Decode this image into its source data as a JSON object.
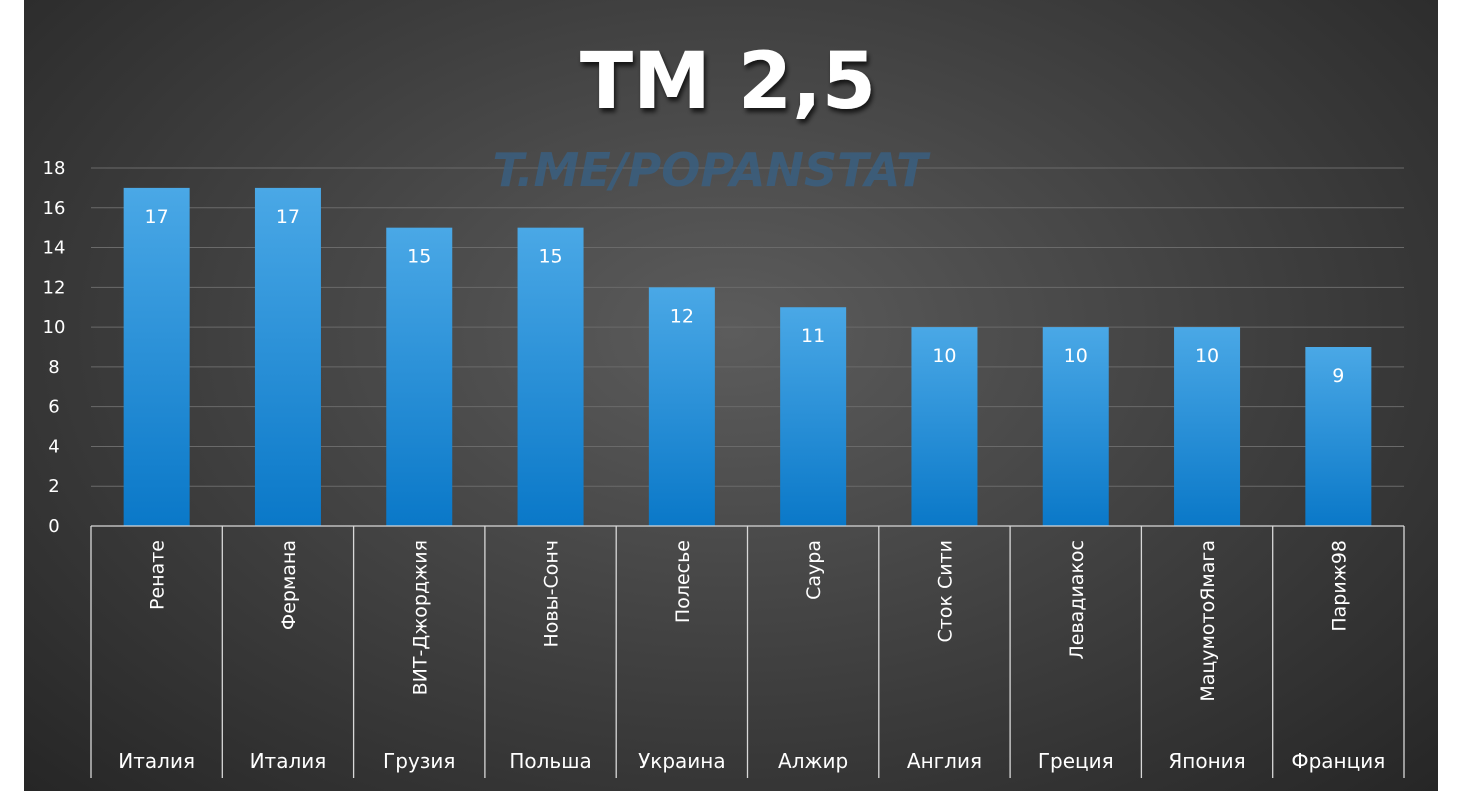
{
  "chart_data": {
    "type": "bar",
    "title": "ТМ 2,5",
    "watermark": "T.ME/POPANSTAT",
    "categories": [
      {
        "team": "Ренате",
        "country": "Италия"
      },
      {
        "team": "Фермана",
        "country": "Италия"
      },
      {
        "team": "ВИТ-Джорджия",
        "country": "Грузия"
      },
      {
        "team": "Новы-Сонч",
        "country": "Польша"
      },
      {
        "team": "Полесье",
        "country": "Украина"
      },
      {
        "team": "Саура",
        "country": "Алжир"
      },
      {
        "team": "Сток Сити",
        "country": "Англия"
      },
      {
        "team": "Левадиакос",
        "country": "Греция"
      },
      {
        "team": "МацумотоЯмага",
        "country": "Япония"
      },
      {
        "team": "Париж98",
        "country": "Франция"
      }
    ],
    "values": [
      17,
      17,
      15,
      15,
      12,
      11,
      10,
      10,
      10,
      9
    ],
    "ylim": [
      0,
      18
    ],
    "yticks": [
      0,
      2,
      4,
      6,
      8,
      10,
      12,
      14,
      16,
      18
    ],
    "grid": true,
    "legend": "none",
    "colors": {
      "bar_top": "#4aa8e6",
      "bar_bottom": "#0a78c8",
      "background": "#3e3e3e"
    }
  }
}
